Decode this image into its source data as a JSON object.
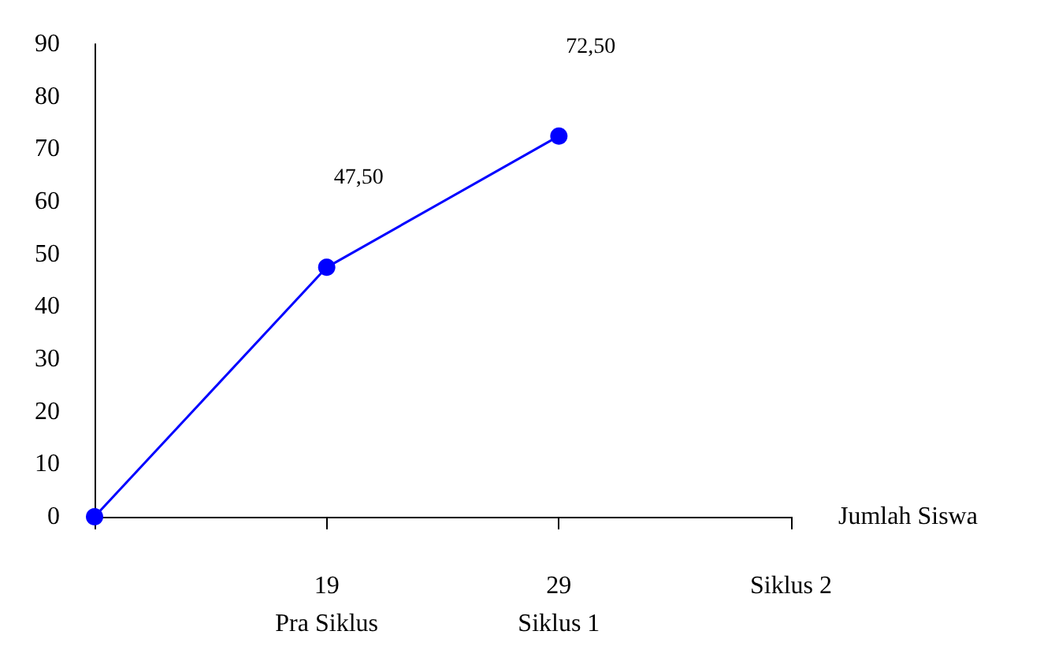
{
  "chart_data": {
    "type": "line",
    "xlabel": "Jumlah Siswa",
    "categories": [
      null,
      "19\nPra Siklus",
      "29\nSiklus 1",
      "Siklus 2"
    ],
    "series": [
      {
        "color": "#0000ff",
        "values": [
          0,
          47.5,
          72.5,
          null
        ],
        "value_labels": [
          null,
          "47,50",
          "72,50",
          null
        ]
      }
    ],
    "ylim": [
      0,
      90
    ],
    "yticks": [
      0,
      10,
      20,
      30,
      40,
      50,
      60,
      70,
      80,
      90
    ],
    "grid": false,
    "marker": "circle",
    "line_style": "solid"
  }
}
